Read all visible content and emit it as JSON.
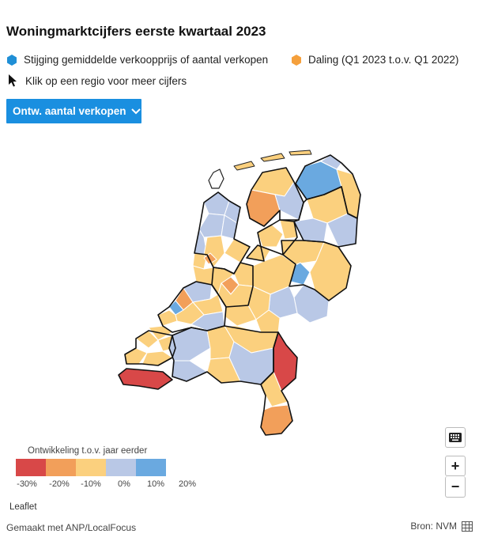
{
  "title": "Woningmarktcijfers eerste kwartaal 2023",
  "legend": {
    "increase_label": "Stijging gemiddelde verkoopprijs of aantal verkopen",
    "decrease_label": "Daling (Q1 2023 t.o.v. Q1 2022)",
    "click_hint": "Klik op een regio voor meer cijfers",
    "increase_color": "#1f8fd6",
    "decrease_color": "#f5a03c"
  },
  "dropdown": {
    "label": "Ontw. aantal verkopen"
  },
  "colorscale": {
    "title": "Ontwikkeling t.o.v. jaar eerder",
    "ticks": [
      "-30%",
      "-20%",
      "-10%",
      "0%",
      "10%",
      "20%"
    ],
    "colors": [
      "#d84848",
      "#f29f5a",
      "#fbd07e",
      "#b9c8e6",
      "#6aa9e0"
    ]
  },
  "controls": {
    "zoom_in": "+",
    "zoom_out": "−"
  },
  "attribution": "Leaflet",
  "footer": {
    "credit": "Gemaakt met ANP/LocalFocus",
    "source": "Bron: NVM"
  },
  "icons": {
    "increase": "hexagon-blue-icon",
    "decrease": "hexagon-orange-icon",
    "cursor": "cursor-arrow-icon",
    "dropdown": "chevron-down-icon",
    "keyboard": "keyboard-icon",
    "table": "table-icon"
  }
}
